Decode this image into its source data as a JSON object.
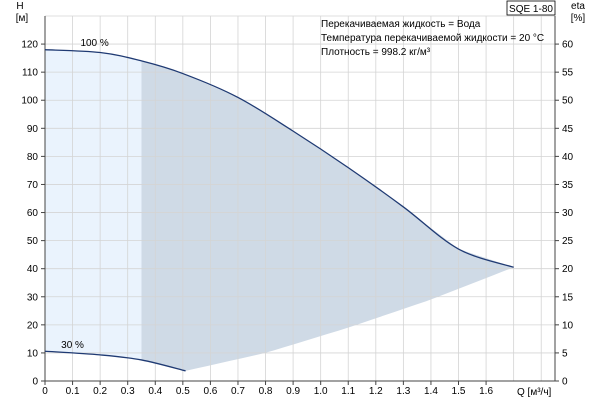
{
  "chart_data": {
    "type": "line",
    "model_label": "SQE 1-80",
    "info_lines": [
      "Перекачиваемая жидкость = Вода",
      "Температура перекачиваемой жидкости = 20 °C",
      "Плотность = 998.2 кг/м³"
    ],
    "y_left": {
      "label_line1": "H",
      "label_line2": "[м]",
      "ticks": [
        "0",
        "10",
        "20",
        "30",
        "40",
        "50",
        "60",
        "70",
        "80",
        "90",
        "100",
        "110",
        "120"
      ],
      "range": [
        0,
        130
      ]
    },
    "y_right": {
      "label_line1": "eta",
      "label_line2": "[%]",
      "ticks": [
        "0",
        "5",
        "10",
        "15",
        "20",
        "25",
        "30",
        "35",
        "40",
        "45",
        "50",
        "55",
        "60"
      ],
      "range": [
        0,
        65
      ]
    },
    "x": {
      "label": "Q [м³/ч]",
      "ticks": [
        "0",
        "0.1",
        "0.2",
        "0.3",
        "0.4",
        "0.5",
        "0.6",
        "0.7",
        "0.8",
        "0.9",
        "1.0",
        "1.1",
        "1.2",
        "1.3",
        "1.4",
        "1.5",
        "1.6"
      ],
      "range": [
        0,
        1.85
      ]
    },
    "grid": true,
    "series": [
      {
        "name": "100 %",
        "color": "#1f3a73",
        "x": [
          0,
          0.2,
          0.35,
          0.5,
          0.7,
          0.9,
          1.1,
          1.3,
          1.5,
          1.7
        ],
        "y": [
          118,
          117,
          114,
          109.5,
          101,
          89,
          76,
          62,
          47,
          40.5
        ]
      },
      {
        "name": "30 %",
        "color": "#1f3a73",
        "x": [
          0,
          0.2,
          0.35,
          0.51
        ],
        "y": [
          10.6,
          9.3,
          7.5,
          3.6
        ]
      }
    ],
    "operating_region": {
      "fill_color": "#cfdae6",
      "light_fill_color": "#eaf3fd",
      "light_x_max": 0.35,
      "lower_boundary_x": [
        0.51,
        0.8,
        1.1,
        1.4,
        1.7
      ],
      "lower_boundary_y": [
        3.6,
        10,
        19,
        29,
        40.5
      ]
    }
  }
}
